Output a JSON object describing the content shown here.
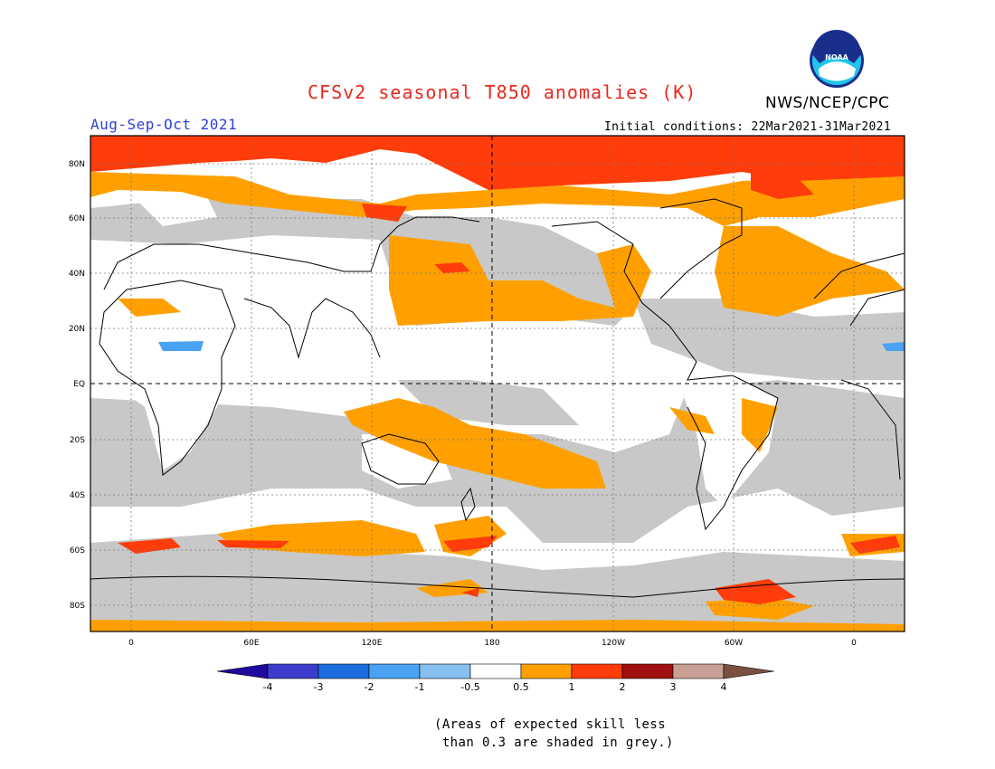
{
  "map": {
    "title": "CFSv2 seasonal T850 anomalies (K)",
    "organization": "NWS/NCEP/CPC",
    "logo_text": "NOAA",
    "season": "Aug-Sep-Oct 2021",
    "initial_conditions": "Initial conditions: 22Mar2021-31Mar2021",
    "lat_labels": [
      "80N",
      "60N",
      "40N",
      "20N",
      "EQ",
      "20S",
      "40S",
      "60S",
      "80S"
    ],
    "lon_labels": [
      "0",
      "60E",
      "120E",
      "180",
      "120W",
      "60W",
      "0"
    ]
  },
  "colorbar": {
    "labels": [
      "-4",
      "-3",
      "-2",
      "-1",
      "-0.5",
      "0.5",
      "1",
      "2",
      "3",
      "4"
    ],
    "colors": [
      "#1e0a9c",
      "#3c3ccc",
      "#1c6ee0",
      "#4aa2f2",
      "#86c0f0",
      "#ffffff",
      "#ffa000",
      "#ff3c0a",
      "#a01010",
      "#c8a096",
      "#7a5040"
    ]
  },
  "note": {
    "line1": "(Areas of expected skill less",
    "line2": " than 0.3 are shaded in grey.)"
  },
  "legend_colors": {
    "grey": "#c8c8c8",
    "orange": "#ffa000",
    "red": "#ff3c0a",
    "light_blue": "#4aa2f2"
  }
}
